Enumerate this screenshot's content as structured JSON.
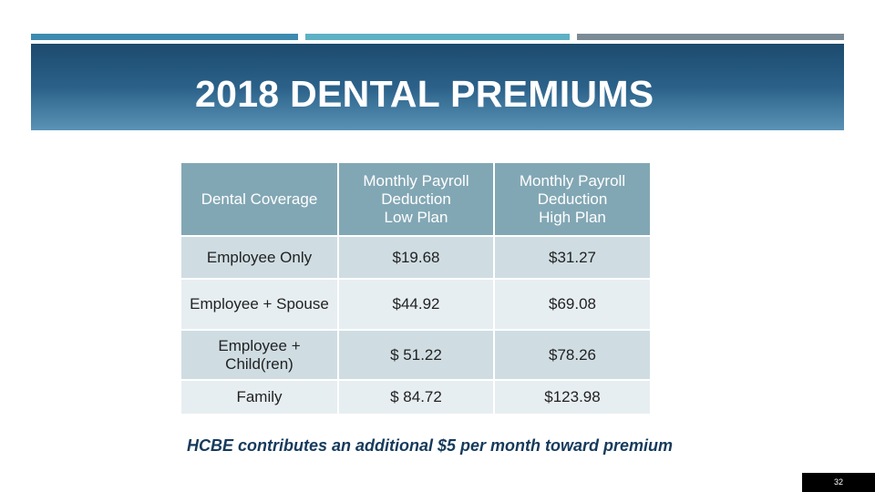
{
  "slide": {
    "title": "2018 DENTAL PREMIUMS",
    "footnote": "HCBE contributes an additional $5 per month toward premium",
    "page_number": "32"
  },
  "table": {
    "headers": [
      "Dental Coverage",
      [
        "Monthly Payroll",
        "Deduction",
        "Low Plan"
      ],
      [
        "Monthly Payroll",
        "Deduction",
        "High Plan"
      ]
    ],
    "rows": [
      {
        "coverage": [
          "Employee Only"
        ],
        "low": "$19.68",
        "high": "$31.27"
      },
      {
        "coverage": [
          "Employee + Spouse"
        ],
        "low": "$44.92",
        "high": "$69.08"
      },
      {
        "coverage": [
          "Employee +",
          "Child(ren)"
        ],
        "low": "$ 51.22",
        "high": "$78.26"
      },
      {
        "coverage": [
          "Family"
        ],
        "low": "$ 84.72",
        "high": "$123.98"
      }
    ]
  },
  "colors": {
    "header_gradient_top": "#1c4a6d",
    "header_gradient_bottom": "#5a93b6",
    "table_header": "#82a7b4",
    "row_dark": "#cfdde3",
    "row_light": "#e7eef1",
    "footnote_text": "#163a5c",
    "accent_bars": [
      "#3d8ab0",
      "#5eb1c4",
      "#7b8b95"
    ]
  }
}
